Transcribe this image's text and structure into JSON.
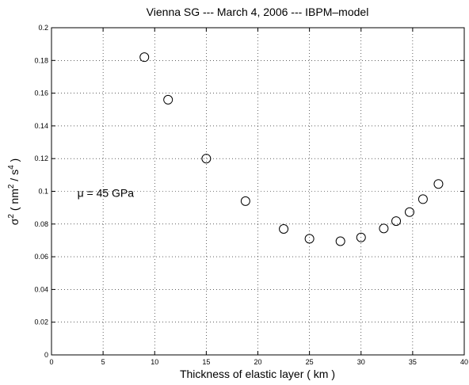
{
  "chart_data": {
    "type": "scatter",
    "title": "Vienna SG --- March 4, 2006 --- IBPM–model",
    "xlabel": "Thickness of elastic layer ( km )",
    "ylabel": {
      "sigma": "σ",
      "sigma_exp": "2",
      "paren_open": " ( nm",
      "nm_exp": "2",
      "slash_s": " / s",
      "s_exp": "4",
      "paren_close": " )"
    },
    "xlim": [
      0,
      40
    ],
    "ylim": [
      0,
      0.2
    ],
    "xticks": [
      0,
      5,
      10,
      15,
      20,
      25,
      30,
      35,
      40
    ],
    "yticks": [
      0,
      0.02,
      0.04,
      0.06,
      0.08,
      0.1,
      0.12,
      0.14,
      0.16,
      0.18,
      0.2
    ],
    "xtick_labels": [
      "0",
      "5",
      "10",
      "15",
      "20",
      "25",
      "30",
      "35",
      "40"
    ],
    "ytick_labels": [
      "0",
      "0.02",
      "0.04",
      "0.06",
      "0.08",
      "0.1",
      "0.12",
      "0.14",
      "0.16",
      "0.18",
      "0.2"
    ],
    "grid": true,
    "grid_style": "dotted",
    "marker": "open-circle",
    "annotation": {
      "text": "μ = 45 GPa",
      "x": 2.5,
      "y": 0.099
    },
    "points": [
      {
        "x": 9.0,
        "y": 0.182
      },
      {
        "x": 11.3,
        "y": 0.156
      },
      {
        "x": 15.0,
        "y": 0.12
      },
      {
        "x": 18.8,
        "y": 0.094
      },
      {
        "x": 22.5,
        "y": 0.077
      },
      {
        "x": 25.0,
        "y": 0.071
      },
      {
        "x": 28.0,
        "y": 0.0695
      },
      {
        "x": 30.0,
        "y": 0.0718
      },
      {
        "x": 32.2,
        "y": 0.0773
      },
      {
        "x": 33.4,
        "y": 0.0818
      },
      {
        "x": 34.7,
        "y": 0.0873
      },
      {
        "x": 36.0,
        "y": 0.0952
      },
      {
        "x": 37.5,
        "y": 0.1045
      }
    ]
  }
}
